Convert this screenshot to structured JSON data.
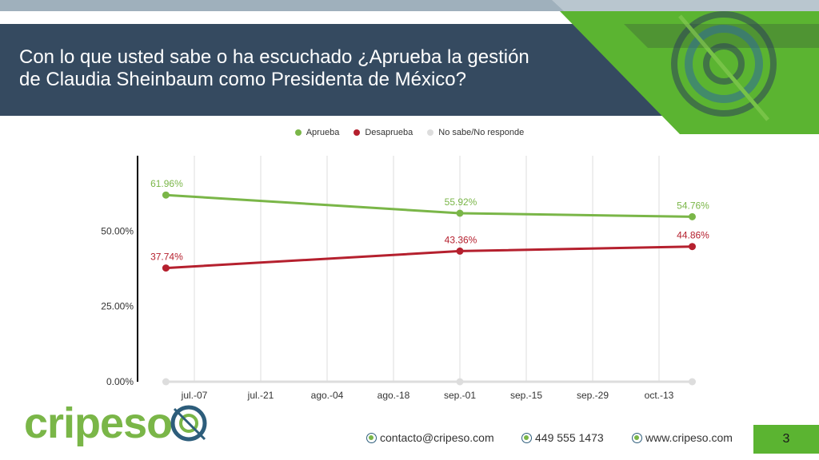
{
  "header": {
    "title_line1": "Con lo que usted sabe o ha escuchado ¿Aprueba la gestión",
    "title_line2": "de Claudia Sheinbaum como Presidenta de México?"
  },
  "colors": {
    "header_bg": "#354a60",
    "accent_green": "#5bb431",
    "aprueba": "#7ab648",
    "desaprueba": "#b5202e",
    "no_sabe": "#dddddd"
  },
  "chart_data": {
    "type": "line",
    "categories": [
      "jul.-07",
      "jul.-21",
      "ago.-04",
      "ago.-18",
      "sep.-01",
      "sep.-15",
      "sep.-29",
      "oct.-13"
    ],
    "y_ticks": [
      "0.00%",
      "25.00%",
      "50.00%"
    ],
    "ylim": [
      0,
      0.75
    ],
    "grid": true,
    "legend_position": "top-center",
    "series": [
      {
        "name": "Aprueba",
        "x": [
          "2024-07-01",
          "2024-09-01",
          "2024-10-20"
        ],
        "values": [
          0.6196,
          0.5592,
          0.5476
        ],
        "labels": [
          "61.96%",
          "55.92%",
          "54.76%"
        ]
      },
      {
        "name": "Desaprueba",
        "x": [
          "2024-07-01",
          "2024-09-01",
          "2024-10-20"
        ],
        "values": [
          0.3774,
          0.4336,
          0.4486
        ],
        "labels": [
          "37.74%",
          "43.36%",
          "44.86%"
        ]
      },
      {
        "name": "No sabe/No responde",
        "x": [
          "2024-07-01",
          "2024-09-01",
          "2024-10-20"
        ],
        "values": [
          0.0,
          0.0,
          0.0
        ],
        "labels": []
      }
    ]
  },
  "logo": {
    "text": "cripeso"
  },
  "footer": {
    "email": "contacto@cripeso.com",
    "phone": "449 555 1473",
    "web": "www.cripeso.com"
  },
  "page_number": "3"
}
